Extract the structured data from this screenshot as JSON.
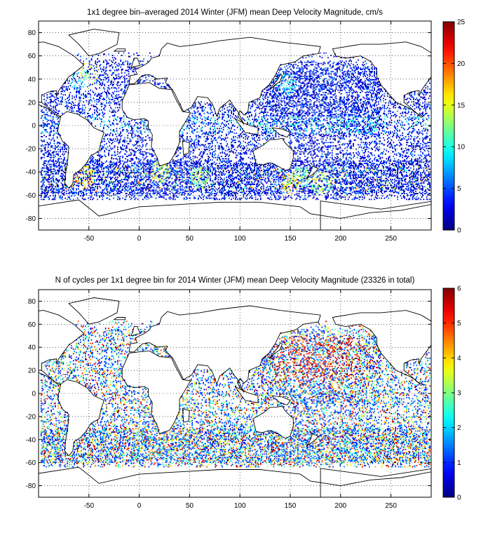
{
  "chart_data": [
    {
      "type": "heatmap",
      "title": "1x1 degree bin–averaged 2014 Winter (JFM) mean Deep Velocity Magnitude, cm/s",
      "xlabel": "",
      "ylabel": "",
      "xlim": [
        -100,
        290
      ],
      "ylim": [
        -90,
        90
      ],
      "x_ticks": [
        -50,
        0,
        50,
        100,
        150,
        200,
        250
      ],
      "y_ticks": [
        80,
        60,
        40,
        20,
        0,
        -20,
        -40,
        -60,
        -80
      ],
      "colorbar": {
        "min": 0,
        "max": 25,
        "ticks": [
          0,
          5,
          10,
          15,
          20,
          25
        ],
        "colormap": "jet"
      },
      "grid": true,
      "hotspots": [
        {
          "lon": -55,
          "lat": -45,
          "value": 22
        },
        {
          "lon": 20,
          "lat": -40,
          "value": 18
        },
        {
          "lon": 60,
          "lat": -45,
          "value": 16
        },
        {
          "lon": 150,
          "lat": -50,
          "value": 20
        },
        {
          "lon": 160,
          "lat": -45,
          "value": 14
        },
        {
          "lon": 180,
          "lat": -50,
          "value": 16
        },
        {
          "lon": -60,
          "lat": 40,
          "value": 12
        },
        {
          "lon": -50,
          "lat": 45,
          "value": 18
        },
        {
          "lon": 145,
          "lat": 35,
          "value": 11
        }
      ]
    },
    {
      "type": "heatmap",
      "title": "N of cycles per 1x1 degree bin for 2014 Winter (JFM) mean Deep Velocity Magnitude (23326 in total)",
      "xlabel": "",
      "ylabel": "",
      "xlim": [
        -100,
        290
      ],
      "ylim": [
        -90,
        90
      ],
      "x_ticks": [
        -50,
        0,
        50,
        100,
        150,
        200,
        250
      ],
      "y_ticks": [
        80,
        60,
        40,
        20,
        0,
        -20,
        -40,
        -60,
        -80
      ],
      "colorbar": {
        "min": 0,
        "max": 6,
        "ticks": [
          0,
          1,
          2,
          3,
          4,
          5,
          6
        ],
        "colormap": "jet"
      },
      "grid": true,
      "total_cycles": 23326
    }
  ]
}
